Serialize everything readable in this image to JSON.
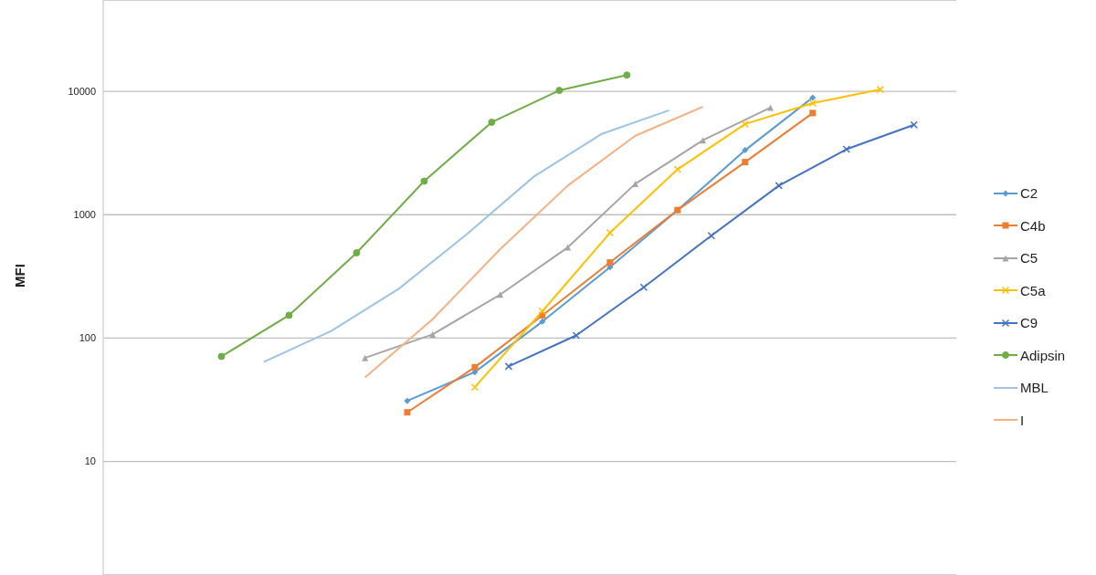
{
  "chart_data": {
    "type": "line",
    "ylabel": "MFI",
    "log": "y",
    "grid": "y",
    "legend": "right",
    "tick_labels": "y",
    "ylim": [
      1.2,
      55000
    ],
    "yticks": [
      10,
      100,
      1000,
      10000
    ],
    "categories": [
      null,
      null,
      null,
      null,
      null,
      null,
      null,
      null,
      null,
      null,
      null,
      null,
      null,
      null,
      null,
      null,
      null,
      null,
      null,
      null,
      null,
      null,
      null,
      null,
      null,
      null,
      null,
      null,
      null,
      null,
      null,
      null,
      null,
      null,
      null,
      null,
      null,
      null,
      null,
      null,
      null,
      null,
      null,
      null,
      null,
      null,
      null,
      null,
      null,
      null,
      null,
      null,
      null,
      null,
      null,
      null,
      null,
      null,
      null,
      null,
      null,
      null,
      null,
      null,
      null,
      null,
      null,
      null,
      null,
      null,
      null,
      null,
      null,
      null,
      null,
      null,
      null,
      null,
      null,
      null,
      null,
      null,
      null,
      null,
      null,
      null,
      null,
      null,
      null,
      null,
      null,
      null,
      null,
      null,
      null,
      null,
      null,
      null,
      null,
      null,
      null,
      null
    ],
    "series": [
      {
        "name": "C2",
        "color": "#5b9bd5",
        "marker": "diamond",
        "values": [
          null,
          null,
          null,
          null,
          null,
          null,
          null,
          null,
          null,
          null,
          null,
          null,
          null,
          null,
          null,
          null,
          null,
          null,
          null,
          null,
          null,
          null,
          null,
          null,
          null,
          null,
          null,
          null,
          null,
          null,
          null,
          null,
          null,
          null,
          null,
          null,
          31,
          null,
          null,
          null,
          null,
          null,
          null,
          null,
          53,
          null,
          null,
          null,
          null,
          null,
          null,
          null,
          136,
          null,
          null,
          null,
          null,
          null,
          null,
          null,
          375,
          null,
          null,
          null,
          null,
          null,
          null,
          null,
          1090,
          null,
          null,
          null,
          null,
          null,
          null,
          null,
          3330,
          null,
          null,
          null,
          null,
          null,
          null,
          null,
          8900,
          null,
          null,
          null,
          null,
          null,
          null,
          null,
          null,
          null,
          null,
          null,
          null,
          null,
          null,
          null,
          null,
          null
        ]
      },
      {
        "name": "C4b",
        "color": "#ed7d31",
        "marker": "square",
        "values": [
          null,
          null,
          null,
          null,
          null,
          null,
          null,
          null,
          null,
          null,
          null,
          null,
          null,
          null,
          null,
          null,
          null,
          null,
          null,
          null,
          null,
          null,
          null,
          null,
          null,
          null,
          null,
          null,
          null,
          null,
          null,
          null,
          null,
          null,
          null,
          null,
          25,
          null,
          null,
          null,
          null,
          null,
          null,
          null,
          58,
          null,
          null,
          null,
          null,
          null,
          null,
          null,
          153,
          null,
          null,
          null,
          null,
          null,
          null,
          null,
          410,
          null,
          null,
          null,
          null,
          null,
          null,
          null,
          1090,
          null,
          null,
          null,
          null,
          null,
          null,
          null,
          2670,
          null,
          null,
          null,
          null,
          null,
          null,
          null,
          6670,
          null,
          null,
          null,
          null,
          null,
          null,
          null,
          null,
          null,
          null,
          null,
          null,
          null,
          null,
          null,
          null,
          null
        ]
      },
      {
        "name": "C5",
        "color": "#a5a5a5",
        "marker": "triangle",
        "values": [
          null,
          null,
          null,
          null,
          null,
          null,
          null,
          null,
          null,
          null,
          null,
          null,
          null,
          null,
          null,
          null,
          null,
          null,
          null,
          null,
          null,
          null,
          null,
          null,
          null,
          null,
          null,
          null,
          null,
          null,
          null,
          69,
          null,
          null,
          null,
          null,
          null,
          null,
          null,
          107,
          null,
          null,
          null,
          null,
          null,
          null,
          null,
          225,
          null,
          null,
          null,
          null,
          null,
          null,
          null,
          543,
          null,
          null,
          null,
          null,
          null,
          null,
          null,
          1780,
          null,
          null,
          null,
          null,
          null,
          null,
          null,
          4010,
          null,
          null,
          null,
          null,
          null,
          null,
          null,
          7380,
          null,
          null,
          null,
          null,
          null,
          null,
          null,
          null,
          null,
          null,
          null,
          null,
          null,
          null,
          null,
          null,
          null,
          null,
          null,
          null,
          null,
          null
        ]
      },
      {
        "name": "C5a",
        "color": "#ffc000",
        "marker": "cross",
        "values": [
          null,
          null,
          null,
          null,
          null,
          null,
          null,
          null,
          null,
          null,
          null,
          null,
          null,
          null,
          null,
          null,
          null,
          null,
          null,
          null,
          null,
          null,
          null,
          null,
          null,
          null,
          null,
          null,
          null,
          null,
          null,
          null,
          null,
          null,
          null,
          null,
          null,
          null,
          null,
          null,
          null,
          null,
          null,
          null,
          40,
          null,
          null,
          null,
          null,
          null,
          null,
          null,
          165,
          null,
          null,
          null,
          null,
          null,
          null,
          null,
          713,
          null,
          null,
          null,
          null,
          null,
          null,
          null,
          2330,
          null,
          null,
          null,
          null,
          null,
          null,
          null,
          5430,
          null,
          null,
          null,
          null,
          null,
          null,
          null,
          8020,
          null,
          null,
          null,
          null,
          null,
          null,
          null,
          10350,
          null,
          null,
          null,
          null,
          null,
          null,
          null,
          null,
          null
        ]
      },
      {
        "name": "C9",
        "color": "#4472c4",
        "marker": "cross",
        "values": [
          null,
          null,
          null,
          null,
          null,
          null,
          null,
          null,
          null,
          null,
          null,
          null,
          null,
          null,
          null,
          null,
          null,
          null,
          null,
          null,
          null,
          null,
          null,
          null,
          null,
          null,
          null,
          null,
          null,
          null,
          null,
          null,
          null,
          null,
          null,
          null,
          null,
          null,
          null,
          null,
          null,
          null,
          null,
          null,
          null,
          null,
          null,
          null,
          59,
          null,
          null,
          null,
          null,
          null,
          null,
          null,
          105,
          null,
          null,
          null,
          null,
          null,
          null,
          null,
          258,
          null,
          null,
          null,
          null,
          null,
          null,
          null,
          676,
          null,
          null,
          null,
          null,
          null,
          null,
          null,
          1720,
          null,
          null,
          null,
          null,
          null,
          null,
          null,
          3390,
          null,
          null,
          null,
          null,
          null,
          null,
          null,
          5350,
          null,
          null,
          null,
          null,
          null
        ]
      },
      {
        "name": "Adipsin",
        "color": "#70ad47",
        "marker": "circle",
        "values": [
          null,
          null,
          null,
          null,
          null,
          null,
          null,
          null,
          null,
          null,
          null,
          null,
          null,
          null,
          71,
          null,
          null,
          null,
          null,
          null,
          null,
          null,
          153,
          null,
          null,
          null,
          null,
          null,
          null,
          null,
          491,
          null,
          null,
          null,
          null,
          null,
          null,
          null,
          1870,
          null,
          null,
          null,
          null,
          null,
          null,
          null,
          5620,
          null,
          null,
          null,
          null,
          null,
          null,
          null,
          10170,
          null,
          null,
          null,
          null,
          null,
          null,
          null,
          13560,
          null,
          null,
          null,
          null,
          null,
          null,
          null,
          null,
          null,
          null,
          null,
          null,
          null,
          null,
          null,
          null,
          null,
          null,
          null,
          null,
          null,
          null,
          null,
          null,
          null,
          null,
          null,
          null,
          null,
          null,
          null,
          null,
          null,
          null,
          null,
          null,
          null,
          null,
          null
        ]
      },
      {
        "name": "MBL",
        "color": "#9dc3e6",
        "marker": "none",
        "values": [
          null,
          null,
          null,
          null,
          null,
          null,
          null,
          null,
          null,
          null,
          null,
          null,
          null,
          null,
          null,
          null,
          null,
          null,
          null,
          64,
          null,
          null,
          null,
          null,
          null,
          null,
          null,
          114,
          null,
          null,
          null,
          null,
          null,
          null,
          null,
          251,
          null,
          null,
          null,
          null,
          null,
          null,
          null,
          690,
          null,
          null,
          null,
          null,
          null,
          null,
          null,
          2040,
          null,
          null,
          null,
          null,
          null,
          null,
          null,
          4510,
          null,
          null,
          null,
          null,
          null,
          null,
          null,
          7010,
          null,
          null,
          null,
          null,
          null,
          null,
          null,
          null,
          null,
          null,
          null,
          null,
          null,
          null,
          null,
          null,
          null,
          null,
          null,
          null,
          null,
          null,
          null,
          null,
          null,
          null,
          null,
          null,
          null,
          null,
          null,
          null,
          null,
          null
        ]
      },
      {
        "name": "I",
        "color": "#f4b183",
        "marker": "none",
        "values": [
          null,
          null,
          null,
          null,
          null,
          null,
          null,
          null,
          null,
          null,
          null,
          null,
          null,
          null,
          null,
          null,
          null,
          null,
          null,
          null,
          null,
          null,
          null,
          null,
          null,
          null,
          null,
          null,
          null,
          null,
          null,
          48,
          null,
          null,
          null,
          null,
          null,
          null,
          null,
          142,
          null,
          null,
          null,
          null,
          null,
          null,
          null,
          525,
          null,
          null,
          null,
          null,
          null,
          null,
          null,
          1720,
          null,
          null,
          null,
          null,
          null,
          null,
          null,
          4360,
          null,
          null,
          null,
          null,
          null,
          null,
          null,
          7500,
          null,
          null,
          null,
          null,
          null,
          null,
          null,
          null,
          null,
          null,
          null,
          null,
          null,
          null,
          null,
          null,
          null,
          null,
          null,
          null,
          null,
          null,
          null,
          null,
          null,
          null,
          null,
          null,
          null,
          null
        ]
      }
    ]
  }
}
